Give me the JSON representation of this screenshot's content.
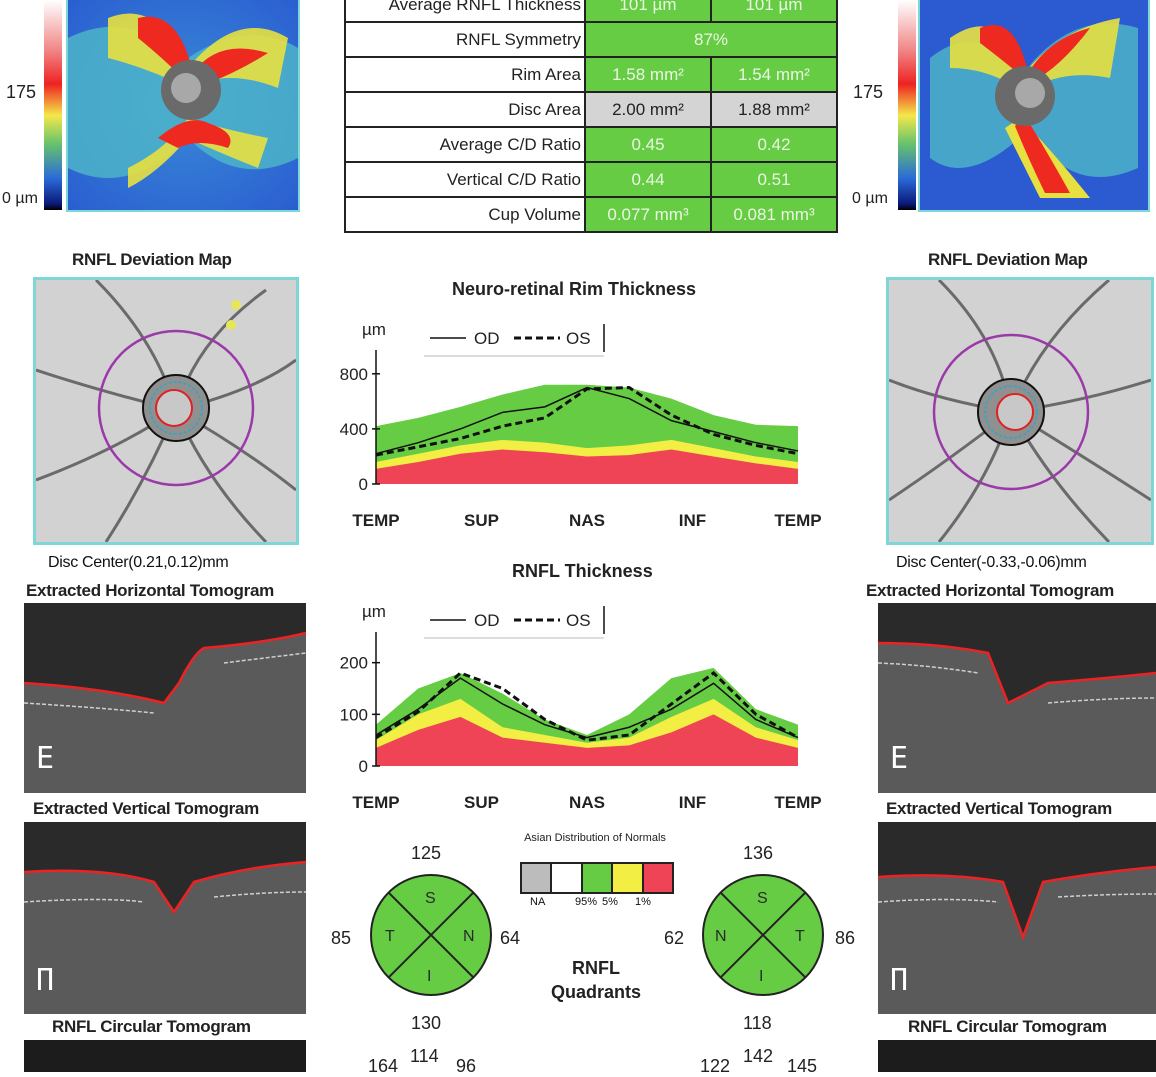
{
  "colors": {
    "green": "#66cc44",
    "yellow": "#f2ee44",
    "red": "#ee4455",
    "gray": "#d4d4d4",
    "border": "#7fd6d6"
  },
  "left_eye": {
    "scale_175": "175",
    "scale_0": "0 µm",
    "deviation_map_title": "RNFL Deviation Map",
    "disc_center": "Disc Center(0.21,0.12)mm",
    "horizontal_tomogram": "Extracted Horizontal Tomogram",
    "vertical_tomogram": "Extracted Vertical Tomogram",
    "circular_tomogram": "RNFL Circular Tomogram"
  },
  "right_eye": {
    "scale_175": "175",
    "scale_0": "0 µm",
    "deviation_map_title": "RNFL Deviation Map",
    "disc_center": "Disc Center(-0.33,-0.06)mm",
    "horizontal_tomogram": "Extracted Horizontal Tomogram",
    "vertical_tomogram": "Extracted Vertical Tomogram",
    "circular_tomogram": "RNFL Circular Tomogram"
  },
  "params_table": [
    {
      "label": "Average RNFL Thickness",
      "od": "101 µm",
      "os": "101 µm"
    },
    {
      "label": "RNFL Symmetry",
      "both": "87%"
    },
    {
      "label": "Rim Area",
      "od": "1.58 mm²",
      "os": "1.54 mm²"
    },
    {
      "label": "Disc Area",
      "od": "2.00 mm²",
      "os": "1.88 mm²",
      "gray": true
    },
    {
      "label": "Average C/D Ratio",
      "od": "0.45",
      "os": "0.42"
    },
    {
      "label": "Vertical C/D Ratio",
      "od": "0.44",
      "os": "0.51"
    },
    {
      "label": "Cup Volume",
      "od": "0.077 mm³",
      "os": "0.081 mm³"
    }
  ],
  "legend": {
    "od": "OD",
    "os": "OS"
  },
  "quadrant_legend": {
    "title": "Asian Distribution of Normals",
    "labels": [
      "NA",
      "95%",
      "5%",
      "1%"
    ]
  },
  "quadrant_title": "RNFL Quadrants",
  "quadrants": {
    "od": {
      "S": "125",
      "T": "85",
      "N": "64",
      "I": "130",
      "labels": [
        "S",
        "T",
        "N",
        "I"
      ]
    },
    "os": {
      "S": "136",
      "N": "62",
      "T": "86",
      "I": "118",
      "labels": [
        "S",
        "N",
        "T",
        "I"
      ]
    }
  },
  "clock_bottom": {
    "od": [
      "164",
      "114",
      "96"
    ],
    "os": [
      "122",
      "142",
      "145"
    ]
  },
  "chart_data": [
    {
      "type": "area",
      "title": "Neuro-retinal Rim Thickness",
      "ylabel": "µm",
      "ylim": [
        0,
        900
      ],
      "yticks": [
        0,
        400,
        800
      ],
      "categories": [
        "TEMP",
        "SUP",
        "NAS",
        "INF",
        "TEMP"
      ],
      "x": [
        0,
        10,
        20,
        30,
        40,
        50,
        60,
        70,
        80,
        90,
        100
      ],
      "normal_bands": {
        "red_top": [
          110,
          160,
          220,
          250,
          230,
          200,
          210,
          250,
          200,
          150,
          110
        ],
        "yellow_top": [
          160,
          220,
          280,
          320,
          300,
          260,
          280,
          320,
          260,
          200,
          160
        ],
        "green_top": [
          420,
          480,
          560,
          650,
          720,
          720,
          700,
          620,
          500,
          430,
          420
        ]
      },
      "series": [
        {
          "name": "OD",
          "values": [
            220,
            300,
            400,
            520,
            560,
            700,
            620,
            460,
            380,
            300,
            240
          ]
        },
        {
          "name": "OS",
          "values": [
            210,
            270,
            330,
            420,
            480,
            690,
            700,
            500,
            360,
            280,
            220
          ]
        }
      ]
    },
    {
      "type": "area",
      "title": "RNFL Thickness",
      "ylabel": "µm",
      "ylim": [
        0,
        240
      ],
      "yticks": [
        0,
        100,
        200
      ],
      "categories": [
        "TEMP",
        "SUP",
        "NAS",
        "INF",
        "TEMP"
      ],
      "x": [
        0,
        10,
        20,
        30,
        40,
        50,
        60,
        70,
        80,
        90,
        100
      ],
      "normal_bands": {
        "red_top": [
          35,
          70,
          95,
          55,
          45,
          35,
          40,
          65,
          100,
          55,
          35
        ],
        "yellow_top": [
          50,
          100,
          130,
          75,
          60,
          45,
          55,
          95,
          130,
          75,
          50
        ],
        "green_top": [
          80,
          150,
          180,
          140,
          90,
          60,
          100,
          170,
          190,
          110,
          80
        ]
      },
      "series": [
        {
          "name": "OD",
          "values": [
            60,
            110,
            170,
            120,
            80,
            55,
            75,
            110,
            160,
            90,
            55
          ]
        },
        {
          "name": "OS",
          "values": [
            55,
            105,
            180,
            150,
            90,
            50,
            60,
            120,
            180,
            100,
            55
          ]
        }
      ]
    }
  ]
}
